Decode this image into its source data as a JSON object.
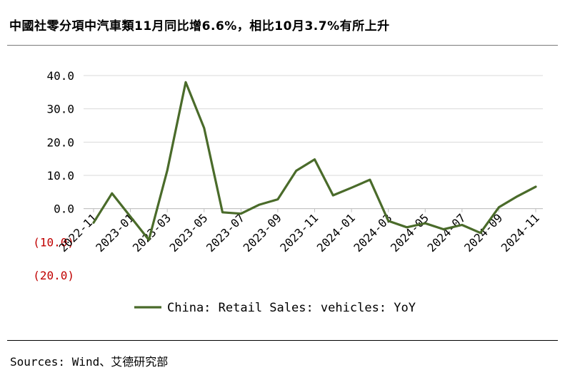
{
  "title": "中國社零分項中汽車類11月同比增6.6%，相比10月3.7%有所上升",
  "source": "Sources: Wind、艾德研究部",
  "colors": {
    "line": "#4a6b2a",
    "grid": "#d9d9d9",
    "negative_label": "#c00000"
  },
  "chart_data": {
    "type": "line",
    "title": "",
    "xlabel": "",
    "ylabel": "",
    "ylim": [
      -20,
      40
    ],
    "y_ticks": [
      40,
      30,
      20,
      10,
      0,
      -10,
      -20
    ],
    "y_tick_labels": [
      "40.0",
      "30.0",
      "20.0",
      "10.0",
      "0.0",
      "(10.0)",
      "(20.0)"
    ],
    "grid": true,
    "legend_position": "bottom",
    "x": [
      "2022-11",
      "2022-12",
      "2023-01",
      "2023-02",
      "2023-03",
      "2023-04",
      "2023-05",
      "2023-06",
      "2023-07",
      "2023-08",
      "2023-09",
      "2023-10",
      "2023-11",
      "2023-12",
      "2024-01",
      "2024-02",
      "2024-03",
      "2024-04",
      "2024-05",
      "2024-06",
      "2024-07",
      "2024-08",
      "2024-09",
      "2024-10",
      "2024-11"
    ],
    "x_tick_labels": [
      "2022-11",
      "2023-01",
      "2023-03",
      "2023-05",
      "2023-07",
      "2023-09",
      "2023-11",
      "2024-01",
      "2024-03",
      "2024-05",
      "2024-07",
      "2024-09",
      "2024-11"
    ],
    "series": [
      {
        "name": "China: Retail Sales: vehicles: YoY",
        "values": [
          -4.2,
          4.6,
          -2.4,
          -9.4,
          11.5,
          38.0,
          24.2,
          -1.1,
          -1.5,
          1.2,
          2.8,
          11.4,
          14.8,
          4.0,
          6.3,
          8.7,
          -3.7,
          -5.6,
          -4.4,
          -6.2,
          -4.9,
          -7.3,
          0.4,
          3.7,
          6.6
        ]
      }
    ]
  }
}
